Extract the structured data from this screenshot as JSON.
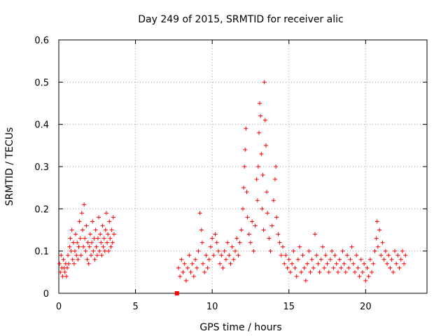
{
  "chart_data": {
    "type": "scatter",
    "title": "Day 249 of 2015, SRMTID for receiver alic",
    "xlabel": "GPS time / hours",
    "ylabel": "SRMTID / TECUs",
    "xlim": [
      0,
      24
    ],
    "ylim": [
      0,
      0.6
    ],
    "x_ticks": [
      0,
      5,
      10,
      15,
      20
    ],
    "y_ticks": [
      0,
      0.1,
      0.2,
      0.3,
      0.4,
      0.5,
      0.6
    ],
    "x_tick_labels": [
      "0",
      "5",
      "10",
      "15",
      "20"
    ],
    "y_tick_labels": [
      "0",
      "0.1",
      "0.2",
      "0.3",
      "0.4",
      "0.5",
      "0.6"
    ],
    "grid": true,
    "marker": "plus",
    "color": "#ff0000",
    "series": [
      {
        "name": "SRMTID",
        "points": [
          [
            0.05,
            0.07
          ],
          [
            0.1,
            0.05
          ],
          [
            0.15,
            0.09
          ],
          [
            0.2,
            0.06
          ],
          [
            0.25,
            0.04
          ],
          [
            0.3,
            0.08
          ],
          [
            0.35,
            0.06
          ],
          [
            0.4,
            0.05
          ],
          [
            0.45,
            0.07
          ],
          [
            0.5,
            0.04
          ],
          [
            0.55,
            0.06
          ],
          [
            0.6,
            0.09
          ],
          [
            0.65,
            0.07
          ],
          [
            0.7,
            0.11
          ],
          [
            0.75,
            0.13
          ],
          [
            0.8,
            0.1
          ],
          [
            0.85,
            0.15
          ],
          [
            0.9,
            0.08
          ],
          [
            0.95,
            0.12
          ],
          [
            1.0,
            0.07
          ],
          [
            1.05,
            0.1
          ],
          [
            1.1,
            0.14
          ],
          [
            1.15,
            0.09
          ],
          [
            1.2,
            0.12
          ],
          [
            1.25,
            0.08
          ],
          [
            1.3,
            0.11
          ],
          [
            1.35,
            0.17
          ],
          [
            1.4,
            0.13
          ],
          [
            1.45,
            0.09
          ],
          [
            1.5,
            0.19
          ],
          [
            1.55,
            0.15
          ],
          [
            1.6,
            0.11
          ],
          [
            1.65,
            0.21
          ],
          [
            1.7,
            0.13
          ],
          [
            1.75,
            0.1
          ],
          [
            1.8,
            0.16
          ],
          [
            1.85,
            0.08
          ],
          [
            1.9,
            0.12
          ],
          [
            1.95,
            0.07
          ],
          [
            2.0,
            0.11
          ],
          [
            2.05,
            0.14
          ],
          [
            2.1,
            0.09
          ],
          [
            2.15,
            0.12
          ],
          [
            2.2,
            0.17
          ],
          [
            2.25,
            0.1
          ],
          [
            2.3,
            0.13
          ],
          [
            2.35,
            0.08
          ],
          [
            2.4,
            0.15
          ],
          [
            2.45,
            0.11
          ],
          [
            2.5,
            0.09
          ],
          [
            2.55,
            0.13
          ],
          [
            2.6,
            0.18
          ],
          [
            2.65,
            0.1
          ],
          [
            2.7,
            0.14
          ],
          [
            2.75,
            0.12
          ],
          [
            2.8,
            0.09
          ],
          [
            2.85,
            0.16
          ],
          [
            2.9,
            0.11
          ],
          [
            2.95,
            0.13
          ],
          [
            3.0,
            0.1
          ],
          [
            3.05,
            0.15
          ],
          [
            3.1,
            0.19
          ],
          [
            3.15,
            0.12
          ],
          [
            3.2,
            0.14
          ],
          [
            3.25,
            0.1
          ],
          [
            3.3,
            0.17
          ],
          [
            3.35,
            0.13
          ],
          [
            3.4,
            0.11
          ],
          [
            3.45,
            0.15
          ],
          [
            3.5,
            0.12
          ],
          [
            3.55,
            0.18
          ],
          [
            3.6,
            0.14
          ],
          [
            7.7,
            0.0
          ],
          [
            7.8,
            0.06
          ],
          [
            7.9,
            0.04
          ],
          [
            8.0,
            0.08
          ],
          [
            8.1,
            0.05
          ],
          [
            8.2,
            0.07
          ],
          [
            8.3,
            0.03
          ],
          [
            8.4,
            0.06
          ],
          [
            8.5,
            0.09
          ],
          [
            8.6,
            0.05
          ],
          [
            8.7,
            0.07
          ],
          [
            8.8,
            0.04
          ],
          [
            8.9,
            0.08
          ],
          [
            9.0,
            0.06
          ],
          [
            9.1,
            0.1
          ],
          [
            9.2,
            0.19
          ],
          [
            9.3,
            0.15
          ],
          [
            9.35,
            0.12
          ],
          [
            9.4,
            0.07
          ],
          [
            9.5,
            0.05
          ],
          [
            9.6,
            0.09
          ],
          [
            9.7,
            0.06
          ],
          [
            9.8,
            0.08
          ],
          [
            9.9,
            0.11
          ],
          [
            10.0,
            0.13
          ],
          [
            10.1,
            0.09
          ],
          [
            10.2,
            0.14
          ],
          [
            10.3,
            0.12
          ],
          [
            10.4,
            0.1
          ],
          [
            10.5,
            0.07
          ],
          [
            10.6,
            0.09
          ],
          [
            10.7,
            0.06
          ],
          [
            10.8,
            0.1
          ],
          [
            10.9,
            0.08
          ],
          [
            11.0,
            0.12
          ],
          [
            11.1,
            0.09
          ],
          [
            11.2,
            0.07
          ],
          [
            11.3,
            0.11
          ],
          [
            11.4,
            0.08
          ],
          [
            11.5,
            0.1
          ],
          [
            11.6,
            0.13
          ],
          [
            11.7,
            0.09
          ],
          [
            11.8,
            0.12
          ],
          [
            11.9,
            0.15
          ],
          [
            12.0,
            0.2
          ],
          [
            12.05,
            0.25
          ],
          [
            12.1,
            0.3
          ],
          [
            12.15,
            0.34
          ],
          [
            12.2,
            0.39
          ],
          [
            12.25,
            0.24
          ],
          [
            12.3,
            0.18
          ],
          [
            12.4,
            0.14
          ],
          [
            12.5,
            0.12
          ],
          [
            12.6,
            0.17
          ],
          [
            12.7,
            0.1
          ],
          [
            12.8,
            0.16
          ],
          [
            12.9,
            0.27
          ],
          [
            12.95,
            0.22
          ],
          [
            13.0,
            0.3
          ],
          [
            13.05,
            0.38
          ],
          [
            13.1,
            0.45
          ],
          [
            13.15,
            0.42
          ],
          [
            13.2,
            0.33
          ],
          [
            13.25,
            0.2
          ],
          [
            13.3,
            0.28
          ],
          [
            13.35,
            0.15
          ],
          [
            13.4,
            0.5
          ],
          [
            13.45,
            0.41
          ],
          [
            13.5,
            0.35
          ],
          [
            13.55,
            0.24
          ],
          [
            13.6,
            0.19
          ],
          [
            13.7,
            0.13
          ],
          [
            13.8,
            0.1
          ],
          [
            13.9,
            0.16
          ],
          [
            14.0,
            0.22
          ],
          [
            14.1,
            0.27
          ],
          [
            14.15,
            0.3
          ],
          [
            14.2,
            0.18
          ],
          [
            14.3,
            0.14
          ],
          [
            14.4,
            0.12
          ],
          [
            14.5,
            0.09
          ],
          [
            14.6,
            0.11
          ],
          [
            14.7,
            0.07
          ],
          [
            14.8,
            0.09
          ],
          [
            14.9,
            0.06
          ],
          [
            15.0,
            0.08
          ],
          [
            15.1,
            0.05
          ],
          [
            15.2,
            0.07
          ],
          [
            15.3,
            0.1
          ],
          [
            15.4,
            0.06
          ],
          [
            15.5,
            0.04
          ],
          [
            15.6,
            0.08
          ],
          [
            15.7,
            0.11
          ],
          [
            15.8,
            0.05
          ],
          [
            15.9,
            0.09
          ],
          [
            16.0,
            0.06
          ],
          [
            16.1,
            0.03
          ],
          [
            16.2,
            0.07
          ],
          [
            16.3,
            0.1
          ],
          [
            16.4,
            0.05
          ],
          [
            16.5,
            0.08
          ],
          [
            16.6,
            0.06
          ],
          [
            16.7,
            0.14
          ],
          [
            16.8,
            0.09
          ],
          [
            16.9,
            0.07
          ],
          [
            17.0,
            0.05
          ],
          [
            17.1,
            0.08
          ],
          [
            17.2,
            0.11
          ],
          [
            17.3,
            0.06
          ],
          [
            17.4,
            0.09
          ],
          [
            17.5,
            0.07
          ],
          [
            17.6,
            0.05
          ],
          [
            17.7,
            0.08
          ],
          [
            17.8,
            0.1
          ],
          [
            17.9,
            0.06
          ],
          [
            18.0,
            0.09
          ],
          [
            18.1,
            0.07
          ],
          [
            18.2,
            0.05
          ],
          [
            18.3,
            0.08
          ],
          [
            18.4,
            0.06
          ],
          [
            18.5,
            0.1
          ],
          [
            18.6,
            0.07
          ],
          [
            18.7,
            0.05
          ],
          [
            18.8,
            0.09
          ],
          [
            18.9,
            0.06
          ],
          [
            19.0,
            0.08
          ],
          [
            19.1,
            0.11
          ],
          [
            19.2,
            0.07
          ],
          [
            19.3,
            0.05
          ],
          [
            19.4,
            0.09
          ],
          [
            19.5,
            0.06
          ],
          [
            19.6,
            0.04
          ],
          [
            19.7,
            0.08
          ],
          [
            19.8,
            0.05
          ],
          [
            19.9,
            0.07
          ],
          [
            20.0,
            0.03
          ],
          [
            20.1,
            0.06
          ],
          [
            20.2,
            0.04
          ],
          [
            20.3,
            0.08
          ],
          [
            20.4,
            0.05
          ],
          [
            20.5,
            0.07
          ],
          [
            20.6,
            0.1
          ],
          [
            20.7,
            0.13
          ],
          [
            20.75,
            0.17
          ],
          [
            20.8,
            0.11
          ],
          [
            20.9,
            0.15
          ],
          [
            21.0,
            0.09
          ],
          [
            21.1,
            0.12
          ],
          [
            21.2,
            0.08
          ],
          [
            21.3,
            0.1
          ],
          [
            21.4,
            0.07
          ],
          [
            21.5,
            0.09
          ],
          [
            21.6,
            0.06
          ],
          [
            21.7,
            0.08
          ],
          [
            21.8,
            0.05
          ],
          [
            21.9,
            0.1
          ],
          [
            22.0,
            0.07
          ],
          [
            22.1,
            0.09
          ],
          [
            22.2,
            0.06
          ],
          [
            22.3,
            0.08
          ],
          [
            22.4,
            0.1
          ],
          [
            22.5,
            0.07
          ],
          [
            22.6,
            0.09
          ]
        ]
      }
    ]
  }
}
